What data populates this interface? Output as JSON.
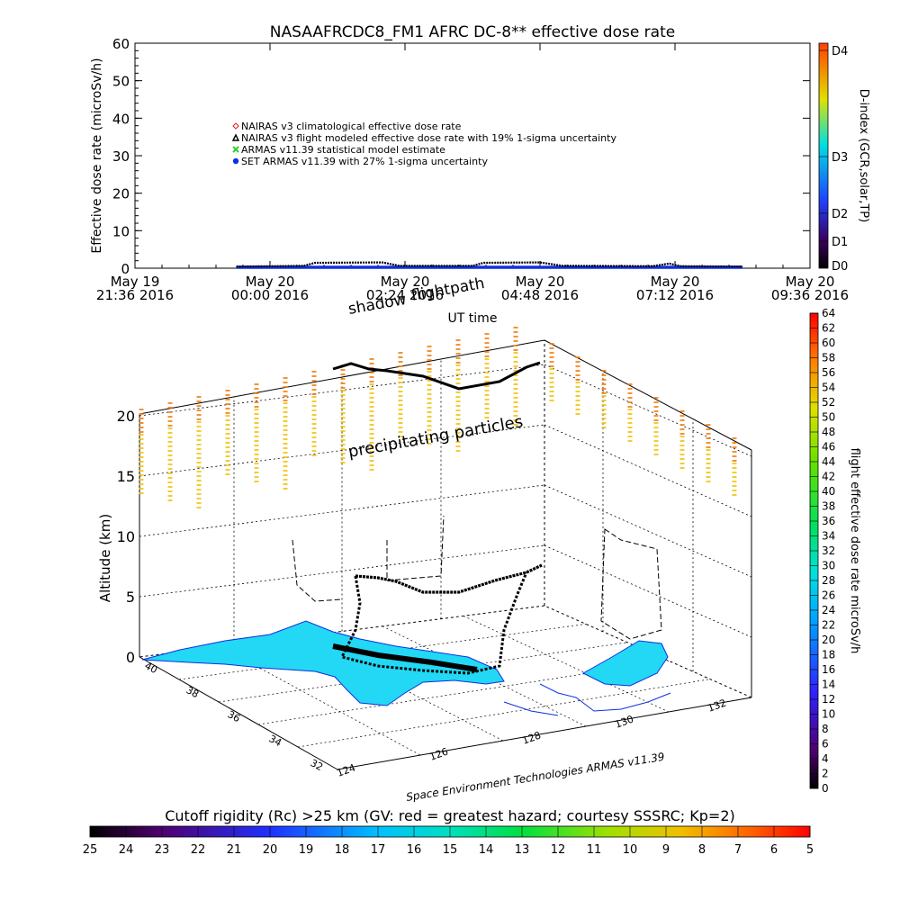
{
  "top_panel": {
    "title": "NASAAFRCDC8_FM1 AFRC DC-8** effective dose rate",
    "ylabel": "Effective dose rate (microSv/h)",
    "y_ticks": [
      "0",
      "10",
      "20",
      "30",
      "40",
      "50",
      "60"
    ],
    "x_ticks": [
      {
        "l1": "May 19",
        "l2": "21:36 2016"
      },
      {
        "l1": "May 20",
        "l2": "00:00 2016"
      },
      {
        "l1": "May 20",
        "l2": "02:24 2016"
      },
      {
        "l1": "May 20",
        "l2": "04:48 2016"
      },
      {
        "l1": "May 20",
        "l2": "07:12 2016"
      },
      {
        "l1": "May 20",
        "l2": "09:36 2016"
      }
    ],
    "xlabel": "UT time",
    "legend": [
      {
        "label": "NAIRAS v3 climatological effective dose rate",
        "color": "#e02020",
        "marker": "diamond"
      },
      {
        "label": "NAIRAS v3 flight modeled effective dose rate with 19% 1-sigma uncertainty",
        "color": "#000000",
        "marker": "triangle"
      },
      {
        "label": "ARMAS v11.39 statistical model estimate",
        "color": "#30d030",
        "marker": "cross"
      },
      {
        "label": "SET ARMAS v11.39 with 27% 1-sigma uncertainty",
        "color": "#1030e0",
        "marker": "circle"
      }
    ],
    "dindex_label": "D-index (GCR,solar,TP)",
    "dindex_ticks": [
      "D0",
      "D1",
      "D2",
      "D3",
      "D4"
    ]
  },
  "chart_data": [
    {
      "type": "scatter",
      "title": "NASAAFRCDC8_FM1 AFRC DC-8** effective dose rate",
      "xlabel": "UT time",
      "ylabel": "Effective dose rate (microSv/h)",
      "xlim_hours_from_May19_2136": [
        0,
        12
      ],
      "ylim": [
        0,
        60
      ],
      "series": [
        {
          "name": "NAIRAS v3 flight modeled effective dose rate with 19% 1-sigma uncertainty",
          "points": [
            [
              1.8,
              0.2
            ],
            [
              3.0,
              0.4
            ],
            [
              3.2,
              1.2
            ],
            [
              4.4,
              1.3
            ],
            [
              4.7,
              0.4
            ],
            [
              6.0,
              0.4
            ],
            [
              6.2,
              1.2
            ],
            [
              7.2,
              1.3
            ],
            [
              7.6,
              0.4
            ],
            [
              9.2,
              0.3
            ],
            [
              9.5,
              1.0
            ],
            [
              9.7,
              0.3
            ],
            [
              10.8,
              0.2
            ]
          ]
        },
        {
          "name": "SET ARMAS v11.39 with 27% 1-sigma uncertainty",
          "points": [
            [
              1.8,
              0
            ],
            [
              4.0,
              0
            ],
            [
              6.0,
              0
            ],
            [
              8.0,
              0
            ],
            [
              10.8,
              0
            ]
          ]
        }
      ]
    },
    {
      "type": "scatter",
      "subtype": "3d-flight-path",
      "zlabel": "Altitude (km)",
      "z_ticks": [
        "0",
        "5",
        "10",
        "15",
        "20"
      ],
      "lat_ticks": [
        "40",
        "38",
        "36",
        "34",
        "32"
      ],
      "lon_ticks": [
        "124",
        "126",
        "128",
        "130",
        "132"
      ],
      "annotations": [
        "shadow",
        "flightpath",
        "precipitating particles"
      ],
      "colorbar_label": "flight effective dose rate microSv/h",
      "colorbar_range": [
        0,
        64
      ],
      "colorbar_ticks": [
        "0",
        "2",
        "4",
        "6",
        "8",
        "10",
        "12",
        "14",
        "16",
        "18",
        "20",
        "22",
        "24",
        "26",
        "28",
        "30",
        "32",
        "34",
        "36",
        "38",
        "40",
        "42",
        "44",
        "46",
        "48",
        "50",
        "52",
        "54",
        "56",
        "58",
        "60",
        "62",
        "64"
      ]
    },
    {
      "type": "heatmap",
      "subtype": "colorbar",
      "title": "Cutoff rigidity (Rc) >25 km (GV: red = greatest hazard; courtesy SSSRC; Kp=2)",
      "ticks": [
        "25",
        "24",
        "23",
        "22",
        "21",
        "20",
        "19",
        "18",
        "17",
        "16",
        "15",
        "14",
        "13",
        "12",
        "11",
        "10",
        "9",
        "8",
        "7",
        "6",
        "5"
      ]
    }
  ],
  "credit": "Space Environment Technologies ARMAS v11.39",
  "colors": {
    "land": "#22d8f5",
    "dose_high": "#f07800",
    "dose_mid": "#f0c000",
    "series_black": "#000000",
    "series_blue": "#1030e0"
  }
}
